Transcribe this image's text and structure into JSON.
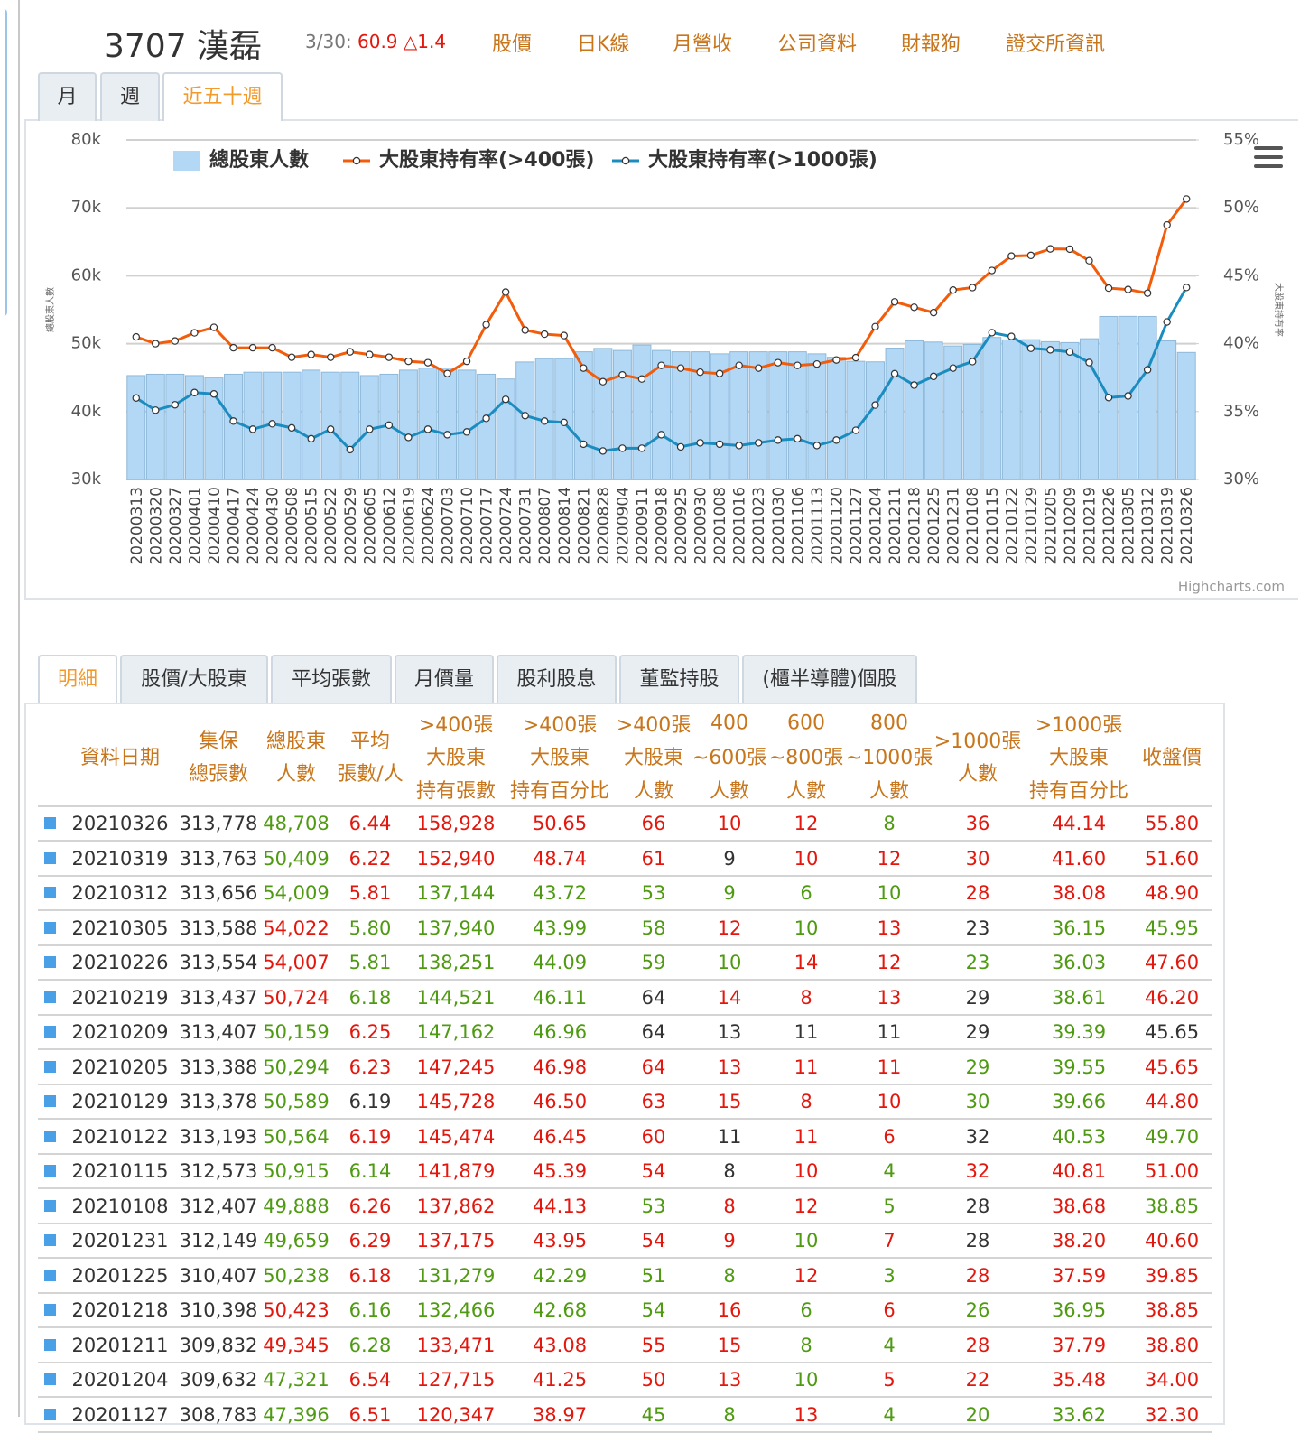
{
  "header": {
    "title": "3707 漢磊",
    "date": "3/30:",
    "price": "60.9 △1.4",
    "links": [
      "股價",
      "日K線",
      "月營收",
      "公司資料",
      "財報狗",
      "證交所資訊"
    ]
  },
  "period_tabs": {
    "items": [
      "月",
      "週",
      "近五十週"
    ],
    "active": 2
  },
  "chart_data": {
    "type": "combo",
    "legend": "top",
    "credits": "Highcharts.com",
    "ylabel": "總股東人數",
    "y2label": "大股東持有率",
    "grid": true,
    "categories": [
      "20200313",
      "20200320",
      "20200327",
      "20200401",
      "20200410",
      "20200417",
      "20200424",
      "20200430",
      "20200508",
      "20200515",
      "20200522",
      "20200529",
      "20200605",
      "20200612",
      "20200619",
      "20200624",
      "20200703",
      "20200710",
      "20200717",
      "20200724",
      "20200731",
      "20200807",
      "20200814",
      "20200821",
      "20200828",
      "20200904",
      "20200911",
      "20200918",
      "20200925",
      "20200930",
      "20201008",
      "20201016",
      "20201023",
      "20201030",
      "20201106",
      "20201113",
      "20201120",
      "20201127",
      "20201204",
      "20201211",
      "20201218",
      "20201225",
      "20201231",
      "20210108",
      "20210115",
      "20210122",
      "20210129",
      "20210205",
      "20210209",
      "20210219",
      "20210226",
      "20210305",
      "20210312",
      "20210319",
      "20210326"
    ],
    "ylim": [
      30000,
      80000
    ],
    "yticks": [
      {
        "value": 30000,
        "label": "30k"
      },
      {
        "value": 40000,
        "label": "40k"
      },
      {
        "value": 50000,
        "label": "50k"
      },
      {
        "value": 60000,
        "label": "60k"
      },
      {
        "value": 70000,
        "label": "70k"
      },
      {
        "value": 80000,
        "label": "80k"
      }
    ],
    "y2lim": [
      30,
      55
    ],
    "y2ticks": [
      {
        "value": 30,
        "label": "30%"
      },
      {
        "value": 35,
        "label": "35%"
      },
      {
        "value": 40,
        "label": "40%"
      },
      {
        "value": 45,
        "label": "45%"
      },
      {
        "value": 50,
        "label": "50%"
      },
      {
        "value": 55,
        "label": "55%"
      }
    ],
    "series": [
      {
        "name": "總股東人數",
        "type": "bar",
        "color": "#b3d8f6",
        "values": [
          45300,
          45500,
          45500,
          45300,
          45000,
          45500,
          45800,
          45800,
          45800,
          46100,
          45800,
          45800,
          45300,
          45500,
          46100,
          46400,
          46400,
          46100,
          45500,
          44800,
          47300,
          47800,
          47800,
          48800,
          49300,
          49000,
          49800,
          49000,
          48800,
          48800,
          48500,
          48800,
          48800,
          48800,
          48800,
          48500,
          48000,
          47396,
          47321,
          49345,
          50423,
          50238,
          49659,
          49888,
          50915,
          50564,
          50589,
          50294,
          50159,
          50724,
          54007,
          54022,
          54009,
          50409,
          48708
        ]
      },
      {
        "name": "大股東持有率(>400張)",
        "type": "line",
        "axis": "y2",
        "color": "#f25c0a",
        "values": [
          40.5,
          40.0,
          40.2,
          40.8,
          41.2,
          39.7,
          39.7,
          39.7,
          39.0,
          39.2,
          39.0,
          39.4,
          39.2,
          39.0,
          38.7,
          38.6,
          37.8,
          38.7,
          41.4,
          43.8,
          41.0,
          40.7,
          40.6,
          38.2,
          37.2,
          37.7,
          37.4,
          38.4,
          38.2,
          37.9,
          37.8,
          38.4,
          38.2,
          38.6,
          38.4,
          38.5,
          38.8,
          38.97,
          41.25,
          43.08,
          42.68,
          42.29,
          43.95,
          44.13,
          45.39,
          46.45,
          46.5,
          46.98,
          46.96,
          46.11,
          44.09,
          43.99,
          43.72,
          48.74,
          50.65
        ]
      },
      {
        "name": "大股東持有率(>1000張)",
        "type": "line",
        "axis": "y2",
        "color": "#1a8cbf",
        "values": [
          36.0,
          35.1,
          35.5,
          36.4,
          36.3,
          34.3,
          33.7,
          34.1,
          33.8,
          33.0,
          33.7,
          32.2,
          33.7,
          34.0,
          33.1,
          33.7,
          33.3,
          33.5,
          34.5,
          35.9,
          34.7,
          34.3,
          34.2,
          32.6,
          32.1,
          32.3,
          32.3,
          33.3,
          32.4,
          32.7,
          32.6,
          32.5,
          32.7,
          32.9,
          33.0,
          32.5,
          32.9,
          33.62,
          35.48,
          37.79,
          36.95,
          37.59,
          38.2,
          38.68,
          40.81,
          40.53,
          39.66,
          39.55,
          39.39,
          38.61,
          36.03,
          36.15,
          38.08,
          41.6,
          44.14
        ]
      }
    ]
  },
  "detail_tabs": {
    "items": [
      "明細",
      "股價/大股東",
      "平均張數",
      "月價量",
      "股利股息",
      "董監持股",
      "(櫃半導體)個股"
    ],
    "active": 0
  },
  "table": {
    "headers": [
      [
        "資料日期"
      ],
      [
        "集保",
        "總張數"
      ],
      [
        "總股東",
        "人數"
      ],
      [
        "平均",
        "張數/人"
      ],
      [
        ">400張",
        "大股東",
        "持有張數"
      ],
      [
        ">400張",
        "大股東",
        "持有百分比"
      ],
      [
        ">400張",
        "大股東",
        "人數"
      ],
      [
        "400",
        "~600張",
        "人數"
      ],
      [
        "600",
        "~800張",
        "人數"
      ],
      [
        "800",
        "~1000張",
        "人數"
      ],
      [
        ">1000張",
        "人數"
      ],
      [
        ">1000張",
        "大股東",
        "持有百分比"
      ],
      [
        "收盤價"
      ]
    ],
    "palette": {
      "k": "#333333",
      "r": "#e3170d",
      "g": "#4f9a12"
    },
    "rows": [
      [
        "20210326",
        "313,778",
        "48,708",
        "6.44",
        "158,928",
        "50.65",
        "66",
        "10",
        "12",
        "8",
        "36",
        "44.14",
        "55.80"
      ],
      [
        "20210319",
        "313,763",
        "50,409",
        "6.22",
        "152,940",
        "48.74",
        "61",
        "9",
        "10",
        "12",
        "30",
        "41.60",
        "51.60"
      ],
      [
        "20210312",
        "313,656",
        "54,009",
        "5.81",
        "137,144",
        "43.72",
        "53",
        "9",
        "6",
        "10",
        "28",
        "38.08",
        "48.90"
      ],
      [
        "20210305",
        "313,588",
        "54,022",
        "5.80",
        "137,940",
        "43.99",
        "58",
        "12",
        "10",
        "13",
        "23",
        "36.15",
        "45.95"
      ],
      [
        "20210226",
        "313,554",
        "54,007",
        "5.81",
        "138,251",
        "44.09",
        "59",
        "10",
        "14",
        "12",
        "23",
        "36.03",
        "47.60"
      ],
      [
        "20210219",
        "313,437",
        "50,724",
        "6.18",
        "144,521",
        "46.11",
        "64",
        "14",
        "8",
        "13",
        "29",
        "38.61",
        "46.20"
      ],
      [
        "20210209",
        "313,407",
        "50,159",
        "6.25",
        "147,162",
        "46.96",
        "64",
        "13",
        "11",
        "11",
        "29",
        "39.39",
        "45.65"
      ],
      [
        "20210205",
        "313,388",
        "50,294",
        "6.23",
        "147,245",
        "46.98",
        "64",
        "13",
        "11",
        "11",
        "29",
        "39.55",
        "45.65"
      ],
      [
        "20210129",
        "313,378",
        "50,589",
        "6.19",
        "145,728",
        "46.50",
        "63",
        "15",
        "8",
        "10",
        "30",
        "39.66",
        "44.80"
      ],
      [
        "20210122",
        "313,193",
        "50,564",
        "6.19",
        "145,474",
        "46.45",
        "60",
        "11",
        "11",
        "6",
        "32",
        "40.53",
        "49.70"
      ],
      [
        "20210115",
        "312,573",
        "50,915",
        "6.14",
        "141,879",
        "45.39",
        "54",
        "8",
        "10",
        "4",
        "32",
        "40.81",
        "51.00"
      ],
      [
        "20210108",
        "312,407",
        "49,888",
        "6.26",
        "137,862",
        "44.13",
        "53",
        "8",
        "12",
        "5",
        "28",
        "38.68",
        "38.85"
      ],
      [
        "20201231",
        "312,149",
        "49,659",
        "6.29",
        "137,175",
        "43.95",
        "54",
        "9",
        "10",
        "7",
        "28",
        "38.20",
        "40.60"
      ],
      [
        "20201225",
        "310,407",
        "50,238",
        "6.18",
        "131,279",
        "42.29",
        "51",
        "8",
        "12",
        "3",
        "28",
        "37.59",
        "39.85"
      ],
      [
        "20201218",
        "310,398",
        "50,423",
        "6.16",
        "132,466",
        "42.68",
        "54",
        "16",
        "6",
        "6",
        "26",
        "36.95",
        "38.85"
      ],
      [
        "20201211",
        "309,832",
        "49,345",
        "6.28",
        "133,471",
        "43.08",
        "55",
        "15",
        "8",
        "4",
        "28",
        "37.79",
        "38.80"
      ],
      [
        "20201204",
        "309,632",
        "47,321",
        "6.54",
        "127,715",
        "41.25",
        "50",
        "13",
        "10",
        "5",
        "22",
        "35.48",
        "34.00"
      ],
      [
        "20201127",
        "308,783",
        "47,396",
        "6.51",
        "120,347",
        "38.97",
        "45",
        "8",
        "13",
        "4",
        "20",
        "33.62",
        "32.30"
      ]
    ],
    "row_colors": [
      "kkgrrrrrrgrrr",
      "kkgrrrrkrrrrr",
      "kkgrggggggrrr",
      "kkrggggrgrkgg",
      "kkrgggggrrggr",
      "kkrgggkrrrkgr",
      "kkgrggkkkkkgk",
      "kkgrrrrrrrggr",
      "kkgkrrrrrrggr",
      "kkgrrrrkrrkgg",
      "kkggrrrkrgrrr",
      "kkgrrrgrrgkrg",
      "kkgrrrrrgrkrr",
      "kkgrggggrgrrr",
      "kkrggggrgrggr",
      "kkrgrrrrggrrr",
      "kkgrrrrrgrrrr",
      "kkgrrrggrgggr"
    ]
  }
}
